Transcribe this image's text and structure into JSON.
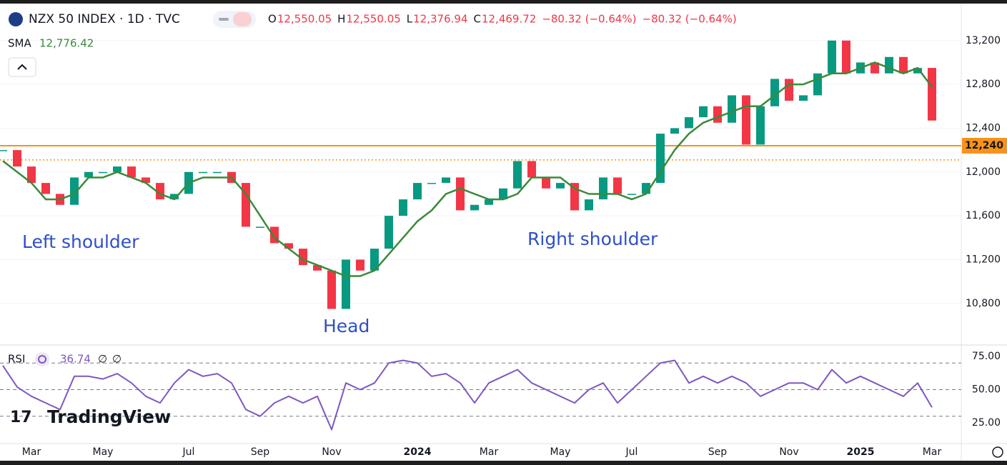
{
  "chart_data": [
    {
      "type": "candlestick",
      "title": "NZX 50 INDEX · 1D · TVC",
      "ohlc": [
        {
          "label": "O",
          "value": "12,550.05"
        },
        {
          "label": "H",
          "value": "12,550.05"
        },
        {
          "label": "L",
          "value": "12,376.94"
        },
        {
          "label": "C",
          "value": "12,469.72"
        }
      ],
      "change": [
        "−80.32 (−0.64%)",
        "−80.32 (−0.64%)"
      ],
      "categories": [
        null,
        null,
        "Mar",
        null,
        null,
        null,
        null,
        "May",
        null,
        null,
        null,
        null,
        null,
        "Jul",
        null,
        null,
        null,
        null,
        "Sep",
        null,
        null,
        null,
        null,
        "Nov",
        null,
        null,
        null,
        null,
        null,
        "2024",
        null,
        null,
        null,
        null,
        "Mar",
        null,
        null,
        null,
        null,
        "May",
        null,
        null,
        null,
        null,
        "Jul",
        null,
        null,
        null,
        null,
        null,
        "Sep",
        null,
        null,
        null,
        null,
        "Nov",
        null,
        null,
        null,
        null,
        "2025",
        null,
        null,
        null,
        null,
        "Mar"
      ],
      "series": [
        {
          "name": "NZX 50 INDEX",
          "values": [
            12200,
            12050,
            11900,
            11800,
            11700,
            11950,
            12000,
            12000,
            12050,
            11950,
            11900,
            11750,
            11800,
            12000,
            12000,
            12000,
            11900,
            11500,
            11500,
            11350,
            11300,
            11150,
            11100,
            10750,
            11200,
            11100,
            11300,
            11600,
            11750,
            11900,
            11900,
            11950,
            11650,
            11700,
            11750,
            11850,
            12100,
            11950,
            11850,
            11900,
            11650,
            11750,
            11950,
            11800,
            11800,
            11900,
            12350,
            12400,
            12500,
            12600,
            12450,
            12700,
            12250,
            12600,
            12850,
            12650,
            12700,
            12900,
            13200,
            12900,
            13000,
            12900,
            13050,
            12900,
            12950,
            12469.72
          ]
        },
        {
          "name": "SMA",
          "color": "#3a8a3a",
          "last_label": "12,776.42",
          "values": [
            12100,
            12000,
            11900,
            11750,
            11750,
            11800,
            11950,
            11950,
            12000,
            11950,
            11900,
            11800,
            11750,
            11900,
            11950,
            11950,
            11950,
            11800,
            11600,
            11400,
            11300,
            11200,
            11150,
            11100,
            11050,
            11050,
            11100,
            11250,
            11400,
            11550,
            11650,
            11800,
            11850,
            11800,
            11750,
            11750,
            11800,
            11950,
            11950,
            11950,
            11850,
            11800,
            11800,
            11800,
            11750,
            11800,
            12000,
            12200,
            12350,
            12450,
            12500,
            12550,
            12600,
            12600,
            12700,
            12800,
            12800,
            12850,
            12900,
            12900,
            12950,
            13000,
            12950,
            12900,
            12950,
            12776.42
          ]
        }
      ],
      "up_color": "#089981",
      "down_color": "#f23645",
      "ylim": [
        10440,
        13505
      ],
      "yticks": [
        {
          "value": 10800,
          "label": "10,800"
        },
        {
          "value": 11200,
          "label": "11,200"
        },
        {
          "value": 11600,
          "label": "11,600"
        },
        {
          "value": 12000,
          "label": "12,000"
        },
        {
          "value": 12400,
          "label": "12,400"
        },
        {
          "value": 12800,
          "label": "12,800"
        },
        {
          "value": 13200,
          "label": "13,200"
        }
      ],
      "grid": true,
      "hlines": [
        {
          "value": 12240,
          "label": "12,240",
          "color": "#f7931a",
          "style": "solid"
        },
        {
          "value": 12110,
          "color": "#f7931a",
          "style": "dotted"
        }
      ],
      "annotations": [
        "Left shoulder",
        "Head",
        "Right shoulder"
      ]
    },
    {
      "type": "line",
      "title": "RSI",
      "last_label": "36.74",
      "params": [
        "∅",
        "∅"
      ],
      "series": [
        {
          "name": "RSI",
          "color": "#7e57c2",
          "values": [
            68,
            52,
            45,
            40,
            35,
            60,
            60,
            58,
            62,
            55,
            45,
            40,
            55,
            65,
            60,
            62,
            55,
            35,
            30,
            40,
            45,
            40,
            45,
            20,
            55,
            50,
            55,
            70,
            72,
            70,
            60,
            62,
            55,
            40,
            55,
            60,
            65,
            55,
            50,
            45,
            40,
            50,
            55,
            40,
            50,
            60,
            70,
            72,
            55,
            60,
            55,
            60,
            55,
            45,
            50,
            55,
            55,
            50,
            65,
            55,
            60,
            55,
            50,
            45,
            55,
            36.74
          ]
        }
      ],
      "levels": [
        70,
        50,
        30
      ],
      "ylim": [
        10,
        83
      ],
      "yticks": [
        {
          "value": 25,
          "label": "25.00"
        },
        {
          "value": 50,
          "label": "50.00"
        },
        {
          "value": 75,
          "label": "75.00"
        }
      ]
    },
    {
      "brand": "TradingView"
    }
  ]
}
